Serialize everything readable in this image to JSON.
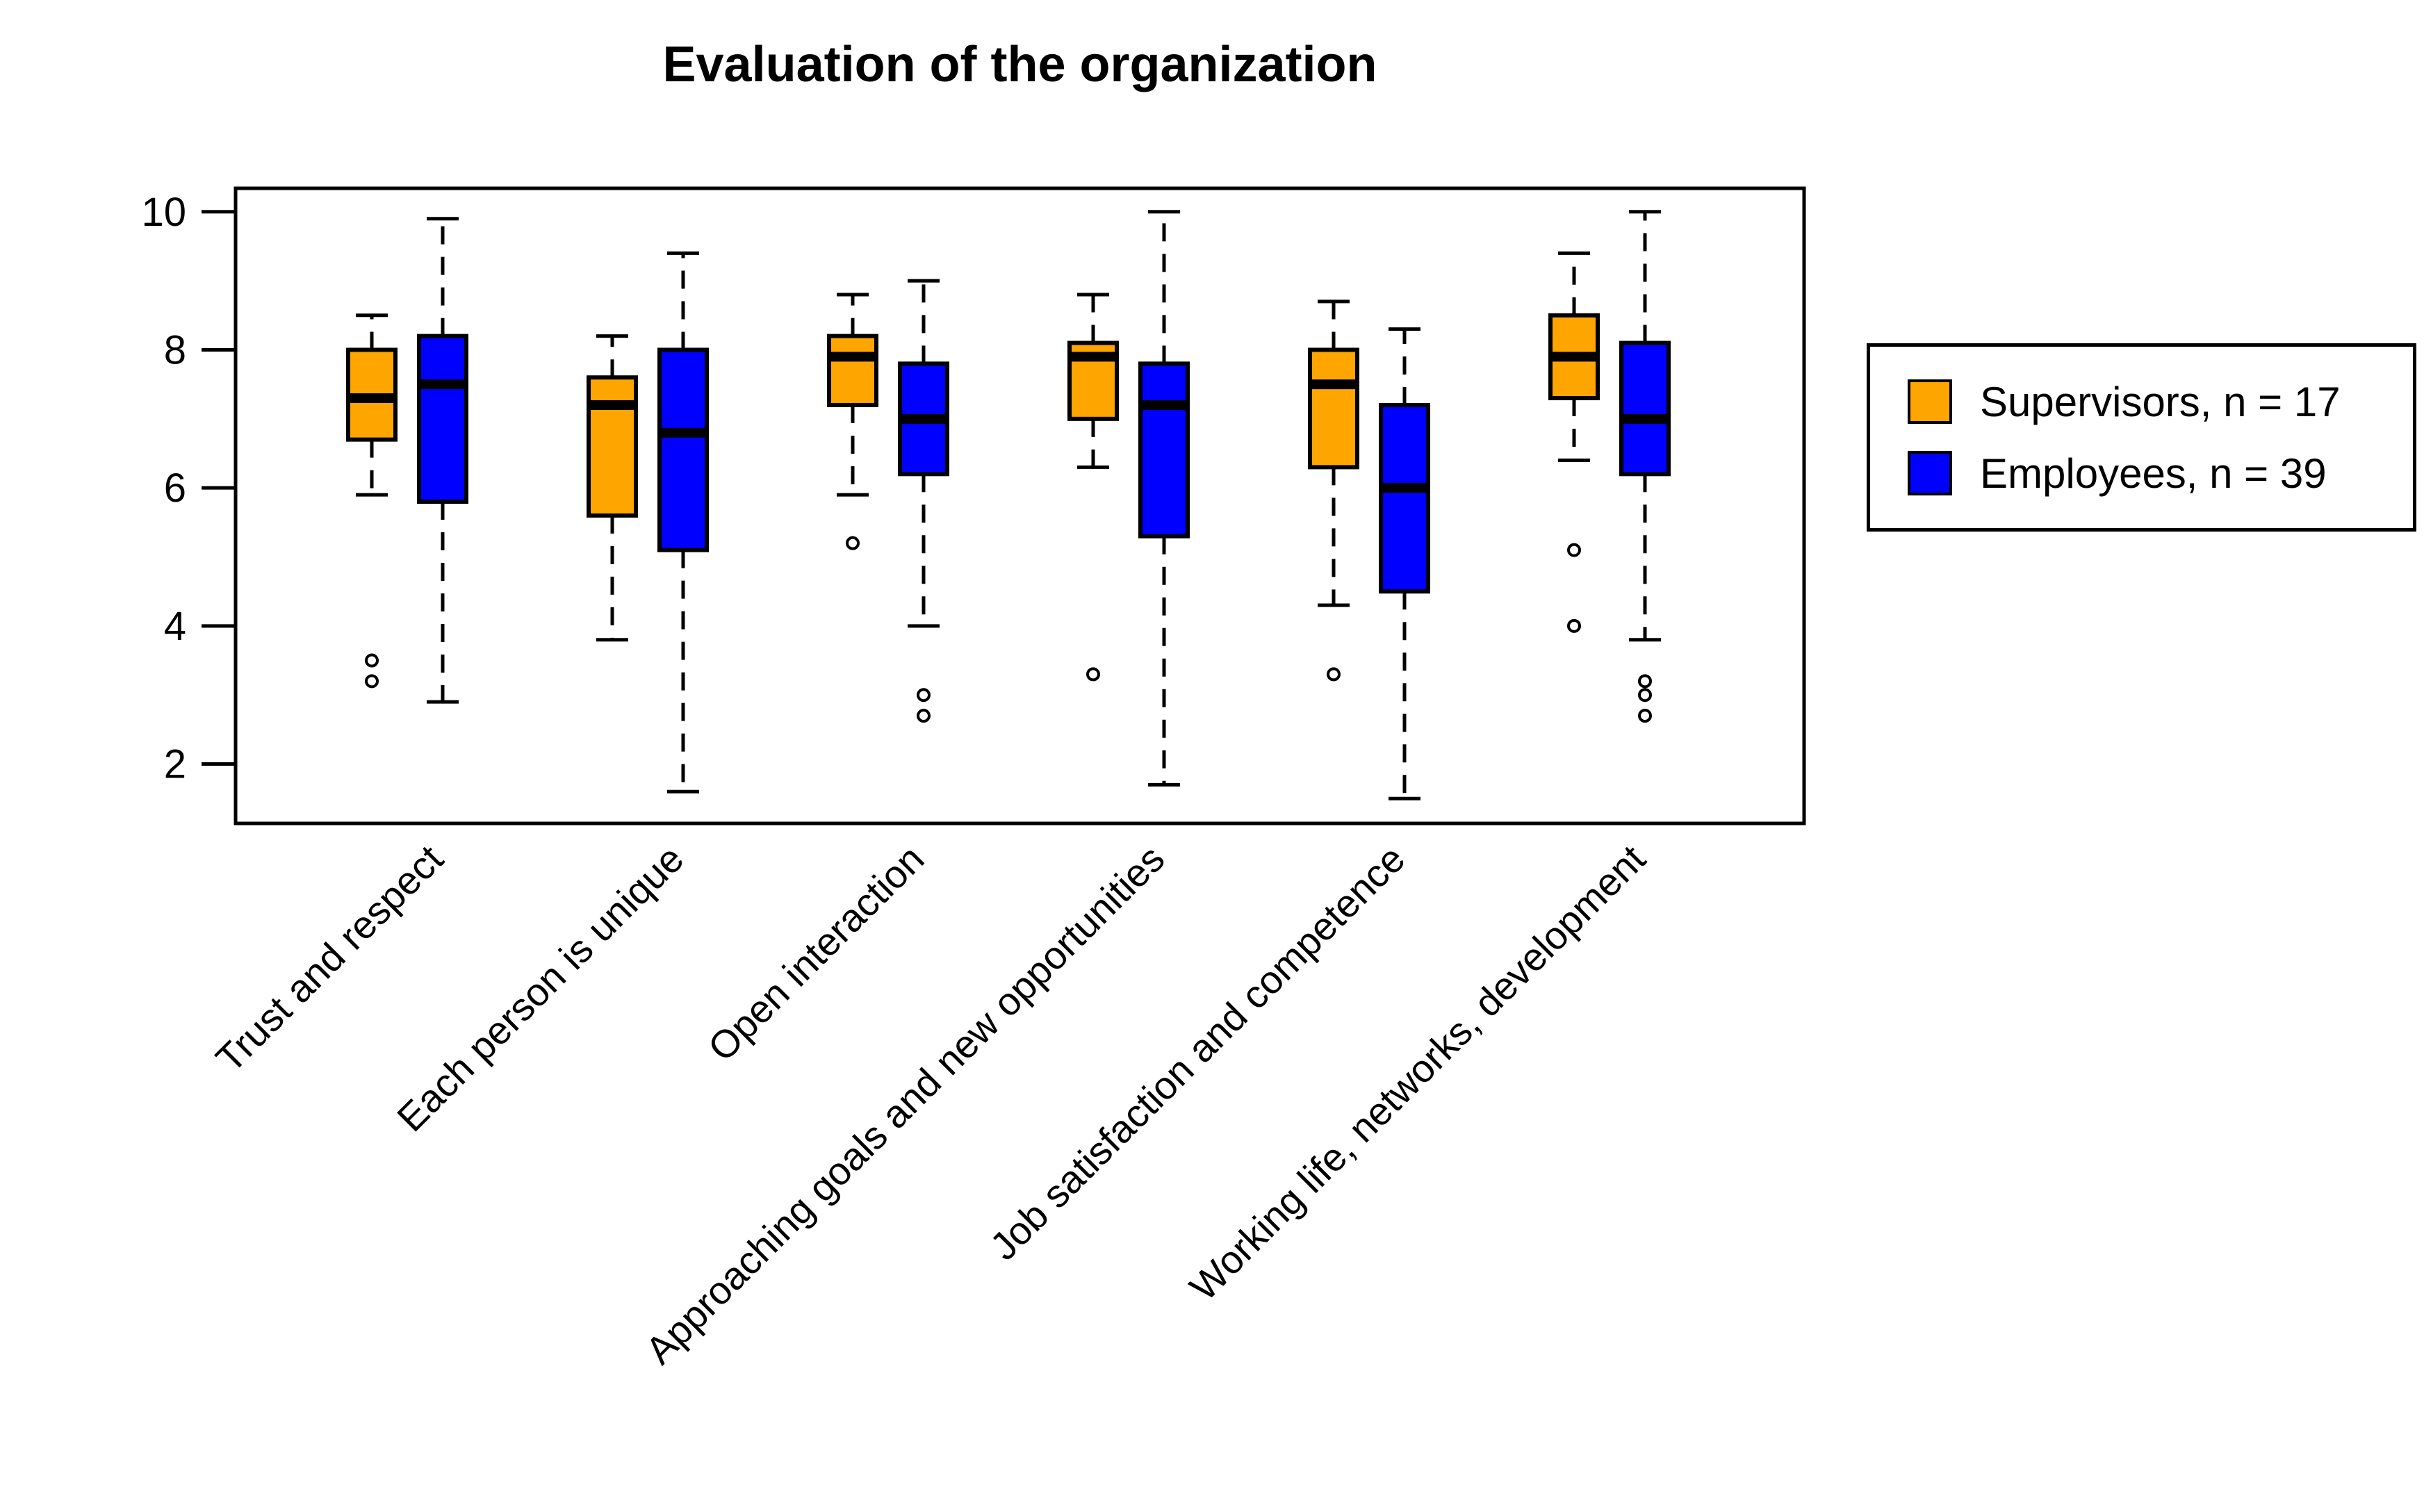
{
  "page": {
    "background": "#FFFFFF"
  },
  "chart_data": {
    "type": "boxplot",
    "title": "Evaluation of the organization",
    "categories": [
      "Trust and respect",
      "Each person is unique",
      "Open interaction",
      "Approaching goals and new opportunities",
      "Job satisfaction and competence",
      "Working life, networks, development"
    ],
    "y_axis": {
      "ticks": [
        2,
        4,
        6,
        8,
        10
      ],
      "shown_min": 1.14,
      "shown_max": 10.34
    },
    "grid": false,
    "legend_position": "right",
    "series": [
      {
        "name": "Supervisors, n = 17",
        "n": 17,
        "color": "#FFA500",
        "boxes": [
          {
            "low": 5.9,
            "q1": 6.7,
            "median": 7.3,
            "q3": 8.0,
            "high": 8.5,
            "outliers": [
              3.5,
              3.2
            ]
          },
          {
            "low": 3.8,
            "q1": 5.6,
            "median": 7.2,
            "q3": 7.6,
            "high": 8.2,
            "outliers": []
          },
          {
            "low": 5.9,
            "q1": 7.2,
            "median": 7.9,
            "q3": 8.2,
            "high": 8.8,
            "outliers": [
              5.2
            ]
          },
          {
            "low": 6.3,
            "q1": 7.0,
            "median": 7.9,
            "q3": 8.1,
            "high": 8.8,
            "outliers": [
              3.3
            ]
          },
          {
            "low": 4.3,
            "q1": 6.3,
            "median": 7.5,
            "q3": 8.0,
            "high": 8.7,
            "outliers": [
              3.3
            ]
          },
          {
            "low": 6.4,
            "q1": 7.3,
            "median": 7.9,
            "q3": 8.5,
            "high": 9.4,
            "outliers": [
              5.1,
              4.0
            ]
          }
        ]
      },
      {
        "name": "Employees, n = 39",
        "n": 39,
        "color": "#0000FF",
        "boxes": [
          {
            "low": 2.9,
            "q1": 5.8,
            "median": 7.5,
            "q3": 8.2,
            "high": 9.9,
            "outliers": []
          },
          {
            "low": 1.6,
            "q1": 5.1,
            "median": 6.8,
            "q3": 8.0,
            "high": 9.4,
            "outliers": []
          },
          {
            "low": 4.0,
            "q1": 6.2,
            "median": 7.0,
            "q3": 7.8,
            "high": 9.0,
            "outliers": [
              3.0,
              2.7
            ]
          },
          {
            "low": 1.7,
            "q1": 5.3,
            "median": 7.2,
            "q3": 7.8,
            "high": 10.0,
            "outliers": []
          },
          {
            "low": 1.5,
            "q1": 4.5,
            "median": 6.0,
            "q3": 7.2,
            "high": 8.3,
            "outliers": []
          },
          {
            "low": 3.8,
            "q1": 6.2,
            "median": 7.0,
            "q3": 8.1,
            "high": 10.0,
            "outliers": [
              3.2,
              3.0,
              2.7
            ]
          }
        ]
      }
    ]
  }
}
